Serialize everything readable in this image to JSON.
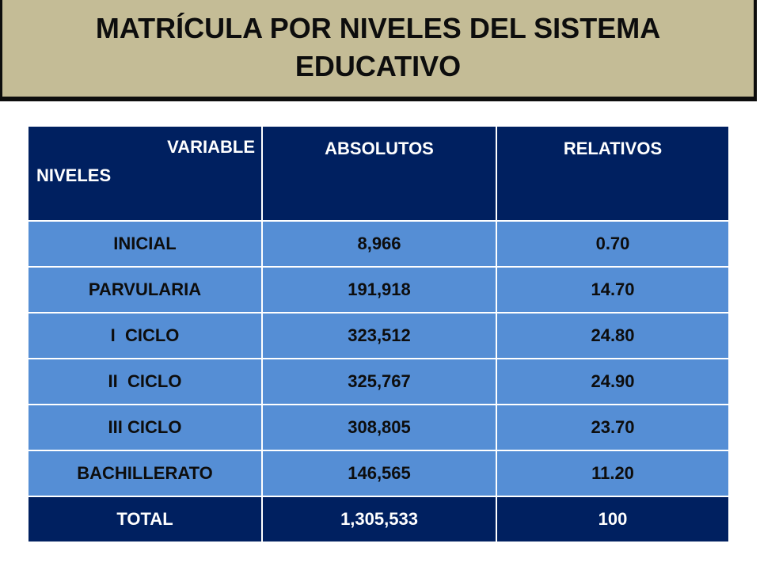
{
  "title": {
    "line1": "MATRÍCULA POR NIVELES DEL SISTEMA",
    "line2": "EDUCATIVO"
  },
  "table": {
    "header": {
      "variable": "VARIABLE",
      "niveles": "NIVELES",
      "absolutos": "ABSOLUTOS",
      "relativos": "RELATIVOS"
    },
    "rows": [
      {
        "nivel": "INICIAL",
        "absolutos": "8,966",
        "relativos": "0.70"
      },
      {
        "nivel": "PARVULARIA",
        "absolutos": "191,918",
        "relativos": "14.70"
      },
      {
        "nivel": "I  CICLO",
        "absolutos": "323,512",
        "relativos": "24.80"
      },
      {
        "nivel": "II  CICLO",
        "absolutos": "325,767",
        "relativos": "24.90"
      },
      {
        "nivel": "III CICLO",
        "absolutos": "308,805",
        "relativos": "23.70"
      },
      {
        "nivel": "BACHILLERATO",
        "absolutos": "146,565",
        "relativos": "11.20"
      }
    ],
    "total": {
      "nivel": "TOTAL",
      "absolutos": "1,305,533",
      "relativos": "100"
    }
  },
  "colors": {
    "title_background": "#c4bc96",
    "header_background": "#002060",
    "row_background": "#558ed5",
    "total_background": "#002060"
  }
}
